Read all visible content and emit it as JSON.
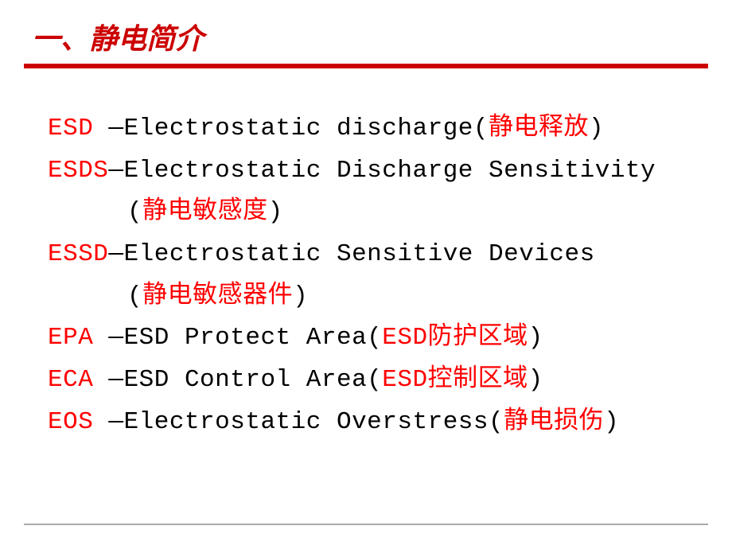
{
  "title": "一、静电简介",
  "items": [
    {
      "abbr": "ESD ",
      "dash": "—",
      "definition": "Electrostatic discharge(",
      "chinese": "静电释放",
      "close": ")"
    },
    {
      "abbr": "ESDS",
      "dash": "—",
      "definition": "Electrostatic Discharge Sensitivity",
      "chinese": "",
      "close": ""
    },
    {
      "abbr": "",
      "dash": "",
      "definition": "(",
      "chinese": "静电敏感度",
      "close": ")",
      "indent": true
    },
    {
      "abbr": "ESSD",
      "dash": "—",
      "definition": "Electrostatic Sensitive Devices",
      "chinese": "",
      "close": ""
    },
    {
      "abbr": "",
      "dash": "",
      "definition": "(",
      "chinese": "静电敏感器件",
      "close": ")",
      "indent": true
    },
    {
      "abbr": "EPA ",
      "dash": "—",
      "definition": "ESD Protect Area(",
      "chinese": "ESD防护区域",
      "close": ")"
    },
    {
      "abbr": "ECA ",
      "dash": "—",
      "definition": "ESD Control Area(",
      "chinese": "ESD控制区域",
      "close": ")"
    },
    {
      "abbr": "EOS ",
      "dash": "—",
      "definition": "Electrostatic Overstress(",
      "chinese": "静电损伤",
      "close": ")"
    }
  ],
  "colors": {
    "title": "#cc0000",
    "red": "#ff0000",
    "black": "#000000",
    "background": "#ffffff",
    "bottomLine": "#aaaaaa"
  },
  "fontSize": {
    "title": 36,
    "body": 31
  }
}
